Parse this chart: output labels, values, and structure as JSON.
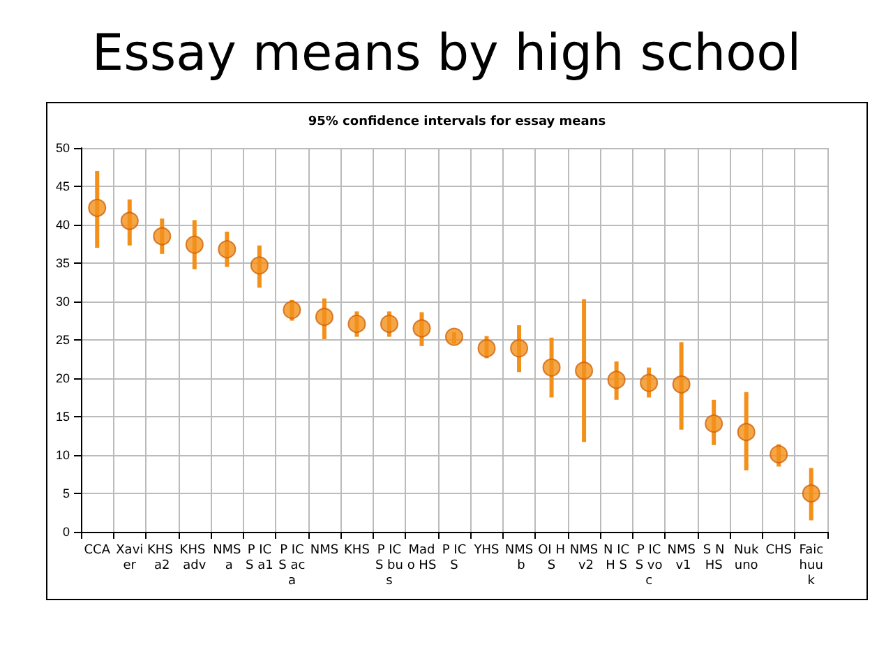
{
  "chart_data": {
    "type": "scatter",
    "title": "Essay means by high school",
    "subtitle": "95% confidence intervals for essay means",
    "categories": [
      "CCA",
      "Xavier",
      "KHS a2",
      "KHS adv",
      "NMS a",
      "P ICS a1",
      "P ICS aca",
      "NMS",
      "KHS",
      "P ICS bus",
      "Mado HS",
      "P ICS",
      "YHS",
      "NMS b",
      "OI HS",
      "NMS v2",
      "N ICH S",
      "P ICS voc",
      "NMS v1",
      "S NHS",
      "Nukuno",
      "CHS",
      "Faichuuk"
    ],
    "series": [
      {
        "color": "#f39019",
        "values": [
          42.2,
          40.5,
          38.5,
          37.4,
          36.8,
          34.7,
          28.9,
          28.0,
          27.1,
          27.1,
          26.5,
          25.4,
          23.9,
          23.9,
          21.4,
          21.0,
          19.8,
          19.4,
          19.2,
          14.1,
          13.0,
          10.1,
          5.0
        ],
        "errors": [
          [
            37,
            47
          ],
          [
            37.3,
            43.3
          ],
          [
            36.2,
            40.8
          ],
          [
            34.2,
            40.6
          ],
          [
            34.5,
            39.1
          ],
          [
            31.8,
            37.3
          ],
          [
            27.5,
            30.2
          ],
          [
            25.1,
            30.4
          ],
          [
            25.4,
            28.7
          ],
          [
            25.4,
            28.7
          ],
          [
            24.2,
            28.6
          ],
          [
            24.5,
            26.0
          ],
          [
            22.6,
            25.5
          ],
          [
            20.8,
            26.9
          ],
          [
            17.5,
            25.3
          ],
          [
            11.7,
            30.3
          ],
          [
            17.2,
            22.2
          ],
          [
            17.5,
            21.4
          ],
          [
            13.3,
            24.7
          ],
          [
            11.3,
            17.2
          ],
          [
            8,
            18.2
          ],
          [
            8.5,
            11.4
          ],
          [
            1.5,
            8.3
          ]
        ]
      }
    ],
    "ylim": [
      0,
      50
    ],
    "yticks": [
      0,
      5,
      10,
      15,
      20,
      25,
      30,
      35,
      40,
      45,
      50
    ],
    "grid": true,
    "marker": "circle"
  }
}
